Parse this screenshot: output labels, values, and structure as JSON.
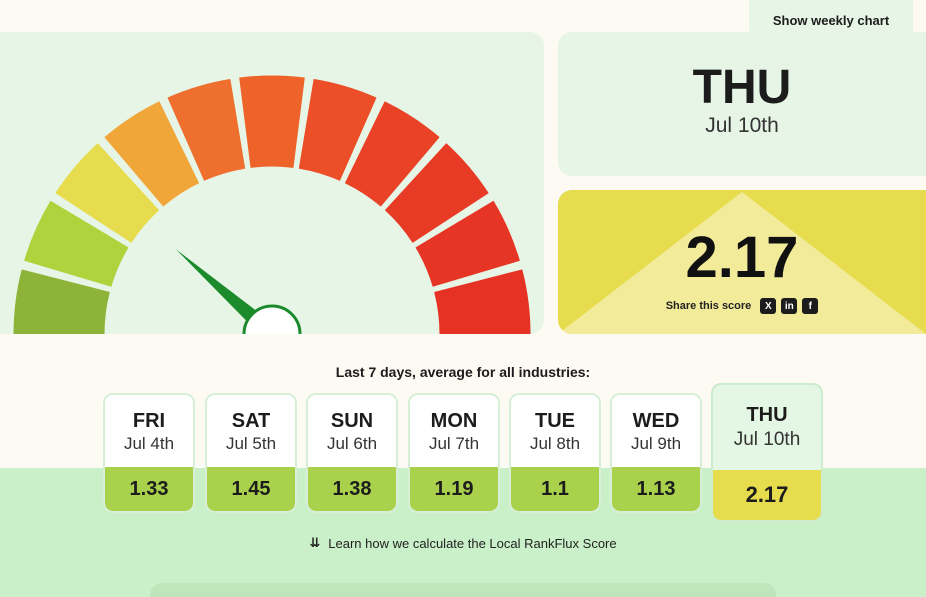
{
  "header": {
    "weekly_chart_label": "Show weekly chart"
  },
  "today": {
    "day": "THU",
    "date": "Jul 10th"
  },
  "score": {
    "value": "2.17",
    "share_label": "Share this score"
  },
  "share_icons": [
    {
      "name": "x-icon",
      "glyph": "X"
    },
    {
      "name": "linkedin-icon",
      "glyph": "in"
    },
    {
      "name": "facebook-icon",
      "glyph": "f"
    }
  ],
  "gauge": {
    "segment_colors": [
      "#8db438",
      "#aed33c",
      "#e6dc4e",
      "#f1a63a",
      "#ee6f2e",
      "#ee6329",
      "#ec4e27",
      "#ea4226",
      "#e83b26",
      "#e73525",
      "#e63224"
    ],
    "needle_color": "#1b8a2b",
    "needle_fraction": 0.23
  },
  "week": {
    "title": "Last 7 days, average for all industries:",
    "days": [
      {
        "day": "FRI",
        "date": "Jul 4th",
        "score": "1.33"
      },
      {
        "day": "SAT",
        "date": "Jul 5th",
        "score": "1.45"
      },
      {
        "day": "SUN",
        "date": "Jul 6th",
        "score": "1.38"
      },
      {
        "day": "MON",
        "date": "Jul 7th",
        "score": "1.19"
      },
      {
        "day": "TUE",
        "date": "Jul 8th",
        "score": "1.1"
      },
      {
        "day": "WED",
        "date": "Jul 9th",
        "score": "1.13"
      },
      {
        "day": "THU",
        "date": "Jul 10th",
        "score": "2.17"
      }
    ]
  },
  "footer": {
    "learn_link": "Learn how we calculate the Local RankFlux Score"
  }
}
